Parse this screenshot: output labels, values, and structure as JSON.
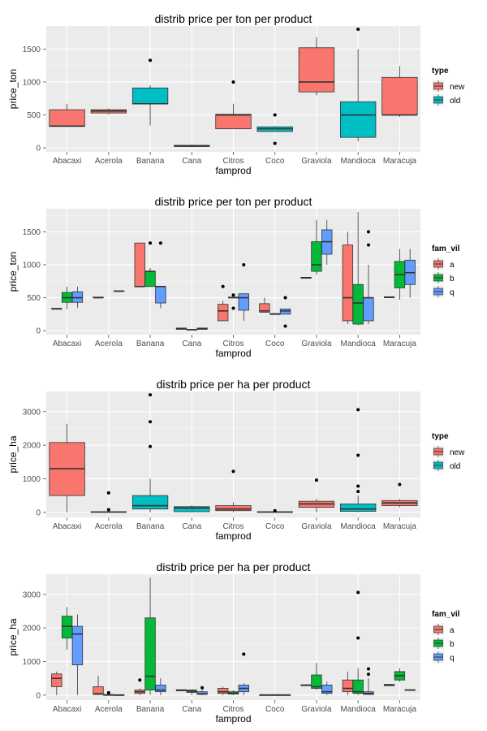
{
  "chart_data": [
    {
      "type": "box",
      "title": "distrib price per ton per product",
      "xlabel": "famprod",
      "ylabel": "price_ton",
      "ylim": [
        -60,
        1850
      ],
      "yticks": [
        0,
        500,
        1000,
        1500
      ],
      "categories": [
        "Abacaxi",
        "Acerola",
        "Banana",
        "Cana",
        "Citros",
        "Coco",
        "Graviola",
        "Mandioca",
        "Maracuja"
      ],
      "legend": {
        "title": "type",
        "entries": [
          {
            "label": "new",
            "color": "#f8766d"
          },
          {
            "label": "old",
            "color": "#00bfc4"
          }
        ]
      },
      "boxes": [
        {
          "category": "Abacaxi",
          "group": "new",
          "min": 330,
          "q1": 330,
          "median": 330,
          "q3": 580,
          "max": 670,
          "outliers": []
        },
        {
          "category": "Acerola",
          "group": "new",
          "min": 510,
          "q1": 530,
          "median": 560,
          "q3": 580,
          "max": 600,
          "outliers": []
        },
        {
          "category": "Banana",
          "group": "old",
          "min": 340,
          "q1": 670,
          "median": 670,
          "q3": 910,
          "max": 950,
          "outliers": [
            1330
          ]
        },
        {
          "category": "Cana",
          "group": "new",
          "min": 10,
          "q1": 20,
          "median": 30,
          "q3": 40,
          "max": 50,
          "outliers": []
        },
        {
          "category": "Citros",
          "group": "new",
          "min": 290,
          "q1": 290,
          "median": 500,
          "q3": 510,
          "max": 670,
          "outliers": [
            1000
          ]
        },
        {
          "category": "Coco",
          "group": "old",
          "min": 250,
          "q1": 250,
          "median": 290,
          "q3": 320,
          "max": 330,
          "outliers": [
            500,
            70
          ]
        },
        {
          "category": "Graviola",
          "group": "new",
          "min": 800,
          "q1": 850,
          "median": 1000,
          "q3": 1520,
          "max": 1680,
          "outliers": []
        },
        {
          "category": "Mandioca",
          "group": "old",
          "min": 100,
          "q1": 160,
          "median": 500,
          "q3": 700,
          "max": 1500,
          "outliers": [
            1800
          ]
        },
        {
          "category": "Maracuja",
          "group": "new",
          "min": 470,
          "q1": 500,
          "median": 500,
          "q3": 1070,
          "max": 1240,
          "outliers": []
        }
      ]
    },
    {
      "type": "box",
      "title": "distrib price per ton per product",
      "xlabel": "famprod",
      "ylabel": "price_ton",
      "ylim": [
        -60,
        1850
      ],
      "yticks": [
        0,
        500,
        1000,
        1500
      ],
      "categories": [
        "Abacaxi",
        "Acerola",
        "Banana",
        "Cana",
        "Citros",
        "Coco",
        "Graviola",
        "Mandioca",
        "Maracuja"
      ],
      "legend": {
        "title": "fam_vil",
        "entries": [
          {
            "label": "a",
            "color": "#f8766d"
          },
          {
            "label": "b",
            "color": "#00ba38"
          },
          {
            "label": "q",
            "color": "#619cff"
          }
        ]
      },
      "boxes": [
        {
          "category": "Abacaxi",
          "group": "a",
          "min": 330,
          "q1": 330,
          "median": 330,
          "q3": 340,
          "max": 340,
          "outliers": []
        },
        {
          "category": "Abacaxi",
          "group": "b",
          "min": 330,
          "q1": 430,
          "median": 500,
          "q3": 580,
          "max": 670,
          "outliers": []
        },
        {
          "category": "Abacaxi",
          "group": "q",
          "min": 350,
          "q1": 430,
          "median": 500,
          "q3": 590,
          "max": 670,
          "outliers": []
        },
        {
          "category": "Acerola",
          "group": "a",
          "min": 500,
          "q1": 500,
          "median": 500,
          "q3": 510,
          "max": 510,
          "outliers": []
        },
        {
          "category": "Acerola",
          "group": "q",
          "min": 600,
          "q1": 600,
          "median": 600,
          "q3": 605,
          "max": 605,
          "outliers": []
        },
        {
          "category": "Banana",
          "group": "a",
          "min": 670,
          "q1": 670,
          "median": 670,
          "q3": 1330,
          "max": 1330,
          "outliers": []
        },
        {
          "category": "Banana",
          "group": "b",
          "min": 670,
          "q1": 670,
          "median": 900,
          "q3": 900,
          "max": 950,
          "outliers": [
            1330
          ]
        },
        {
          "category": "Banana",
          "group": "q",
          "min": 340,
          "q1": 420,
          "median": 670,
          "q3": 670,
          "max": 670,
          "outliers": [
            1330
          ]
        },
        {
          "category": "Cana",
          "group": "a",
          "min": 20,
          "q1": 20,
          "median": 30,
          "q3": 40,
          "max": 40,
          "outliers": []
        },
        {
          "category": "Cana",
          "group": "b",
          "min": 10,
          "q1": 10,
          "median": 15,
          "q3": 20,
          "max": 20,
          "outliers": []
        },
        {
          "category": "Cana",
          "group": "q",
          "min": 20,
          "q1": 20,
          "median": 30,
          "q3": 40,
          "max": 40,
          "outliers": []
        },
        {
          "category": "Citros",
          "group": "a",
          "min": 150,
          "q1": 150,
          "median": 300,
          "q3": 400,
          "max": 450,
          "outliers": [
            670
          ]
        },
        {
          "category": "Citros",
          "group": "b",
          "min": 500,
          "q1": 500,
          "median": 500,
          "q3": 510,
          "max": 510,
          "outliers": [
            340,
            540
          ]
        },
        {
          "category": "Citros",
          "group": "q",
          "min": 150,
          "q1": 310,
          "median": 500,
          "q3": 560,
          "max": 560,
          "outliers": [
            1000
          ]
        },
        {
          "category": "Coco",
          "group": "a",
          "min": 280,
          "q1": 280,
          "median": 300,
          "q3": 410,
          "max": 500,
          "outliers": []
        },
        {
          "category": "Coco",
          "group": "b",
          "min": 250,
          "q1": 250,
          "median": 250,
          "q3": 260,
          "max": 260,
          "outliers": []
        },
        {
          "category": "Coco",
          "group": "q",
          "min": 250,
          "q1": 250,
          "median": 300,
          "q3": 330,
          "max": 330,
          "outliers": [
            500,
            70
          ]
        },
        {
          "category": "Graviola",
          "group": "a",
          "min": 800,
          "q1": 800,
          "median": 800,
          "q3": 810,
          "max": 810,
          "outliers": []
        },
        {
          "category": "Graviola",
          "group": "b",
          "min": 850,
          "q1": 900,
          "median": 1000,
          "q3": 1350,
          "max": 1680,
          "outliers": []
        },
        {
          "category": "Graviola",
          "group": "q",
          "min": 1000,
          "q1": 1160,
          "median": 1350,
          "q3": 1530,
          "max": 1680,
          "outliers": []
        },
        {
          "category": "Mandioca",
          "group": "a",
          "min": 100,
          "q1": 150,
          "median": 500,
          "q3": 1300,
          "max": 1500,
          "outliers": []
        },
        {
          "category": "Mandioca",
          "group": "b",
          "min": 80,
          "q1": 100,
          "median": 420,
          "q3": 700,
          "max": 1800,
          "outliers": []
        },
        {
          "category": "Mandioca",
          "group": "q",
          "min": 100,
          "q1": 150,
          "median": 500,
          "q3": 500,
          "max": 1000,
          "outliers": [
            1300,
            1500
          ]
        },
        {
          "category": "Maracuja",
          "group": "a",
          "min": 500,
          "q1": 500,
          "median": 510,
          "q3": 510,
          "max": 510,
          "outliers": []
        },
        {
          "category": "Maracuja",
          "group": "b",
          "min": 470,
          "q1": 650,
          "median": 850,
          "q3": 1050,
          "max": 1240,
          "outliers": []
        },
        {
          "category": "Maracuja",
          "group": "q",
          "min": 500,
          "q1": 700,
          "median": 880,
          "q3": 1070,
          "max": 1240,
          "outliers": []
        }
      ]
    },
    {
      "type": "box",
      "title": "distrib price per ha per product",
      "xlabel": "famprod",
      "ylabel": "price_ha",
      "ylim": [
        -150,
        3600
      ],
      "yticks": [
        0,
        1000,
        2000,
        3000
      ],
      "categories": [
        "Abacaxi",
        "Acerola",
        "Banana",
        "Cana",
        "Citros",
        "Coco",
        "Graviola",
        "Mandioca",
        "Maracuja"
      ],
      "legend": {
        "title": "type",
        "entries": [
          {
            "label": "new",
            "color": "#f8766d"
          },
          {
            "label": "old",
            "color": "#00bfc4"
          }
        ]
      },
      "boxes": [
        {
          "category": "Abacaxi",
          "group": "new",
          "min": 0,
          "q1": 500,
          "median": 1300,
          "q3": 2080,
          "max": 2640,
          "outliers": []
        },
        {
          "category": "Acerola",
          "group": "old",
          "min": 0,
          "q1": 0,
          "median": 10,
          "q3": 20,
          "max": 30,
          "outliers": [
            580,
            80
          ]
        },
        {
          "category": "Banana",
          "group": "old",
          "min": 0,
          "q1": 100,
          "median": 200,
          "q3": 500,
          "max": 1000,
          "outliers": [
            1960,
            2700,
            3500
          ]
        },
        {
          "category": "Cana",
          "group": "old",
          "min": 0,
          "q1": 20,
          "median": 130,
          "q3": 170,
          "max": 210,
          "outliers": []
        },
        {
          "category": "Citros",
          "group": "new",
          "min": 0,
          "q1": 50,
          "median": 100,
          "q3": 200,
          "max": 300,
          "outliers": [
            1220
          ]
        },
        {
          "category": "Coco",
          "group": "old",
          "min": 0,
          "q1": 0,
          "median": 10,
          "q3": 20,
          "max": 30,
          "outliers": [
            50
          ]
        },
        {
          "category": "Graviola",
          "group": "new",
          "min": 0,
          "q1": 150,
          "median": 250,
          "q3": 330,
          "max": 400,
          "outliers": [
            960
          ]
        },
        {
          "category": "Mandioca",
          "group": "old",
          "min": 0,
          "q1": 30,
          "median": 100,
          "q3": 250,
          "max": 500,
          "outliers": [
            620,
            780,
            1700,
            3060
          ]
        },
        {
          "category": "Maracuja",
          "group": "new",
          "min": 150,
          "q1": 200,
          "median": 280,
          "q3": 350,
          "max": 400,
          "outliers": [
            830
          ]
        }
      ]
    },
    {
      "type": "box",
      "title": "distrib price per ha per product",
      "xlabel": "famprod",
      "ylabel": "price_ha",
      "ylim": [
        -150,
        3600
      ],
      "yticks": [
        0,
        1000,
        2000,
        3000
      ],
      "categories": [
        "Abacaxi",
        "Acerola",
        "Banana",
        "Cana",
        "Citros",
        "Coco",
        "Graviola",
        "Mandioca",
        "Maracuja"
      ],
      "legend": {
        "title": "fam_vil",
        "entries": [
          {
            "label": "a",
            "color": "#f8766d"
          },
          {
            "label": "b",
            "color": "#00ba38"
          },
          {
            "label": "q",
            "color": "#619cff"
          }
        ]
      },
      "boxes": [
        {
          "category": "Abacaxi",
          "group": "a",
          "min": 0,
          "q1": 250,
          "median": 500,
          "q3": 630,
          "max": 700,
          "outliers": []
        },
        {
          "category": "Abacaxi",
          "group": "b",
          "min": 1350,
          "q1": 1700,
          "median": 2050,
          "q3": 2350,
          "max": 2620,
          "outliers": []
        },
        {
          "category": "Abacaxi",
          "group": "q",
          "min": 0,
          "q1": 900,
          "median": 1820,
          "q3": 2050,
          "max": 2400,
          "outliers": []
        },
        {
          "category": "Acerola",
          "group": "a",
          "min": 0,
          "q1": 20,
          "median": 40,
          "q3": 250,
          "max": 580,
          "outliers": []
        },
        {
          "category": "Acerola",
          "group": "b",
          "min": 0,
          "q1": 0,
          "median": 10,
          "q3": 10,
          "max": 10,
          "outliers": [
            70
          ]
        },
        {
          "category": "Acerola",
          "group": "q",
          "min": 0,
          "q1": 0,
          "median": 5,
          "q3": 5,
          "max": 10,
          "outliers": []
        },
        {
          "category": "Banana",
          "group": "a",
          "min": 0,
          "q1": 50,
          "median": 100,
          "q3": 150,
          "max": 200,
          "outliers": [
            450
          ]
        },
        {
          "category": "Banana",
          "group": "b",
          "min": 0,
          "q1": 150,
          "median": 560,
          "q3": 2300,
          "max": 3500,
          "outliers": []
        },
        {
          "category": "Banana",
          "group": "q",
          "min": 0,
          "q1": 100,
          "median": 150,
          "q3": 300,
          "max": 500,
          "outliers": []
        },
        {
          "category": "Cana",
          "group": "a",
          "min": 120,
          "q1": 130,
          "median": 140,
          "q3": 160,
          "max": 170,
          "outliers": []
        },
        {
          "category": "Cana",
          "group": "b",
          "min": 0,
          "q1": 80,
          "median": 120,
          "q3": 150,
          "max": 180,
          "outliers": []
        },
        {
          "category": "Cana",
          "group": "q",
          "min": 0,
          "q1": 20,
          "median": 40,
          "q3": 100,
          "max": 150,
          "outliers": [
            220
          ]
        },
        {
          "category": "Citros",
          "group": "a",
          "min": 0,
          "q1": 50,
          "median": 100,
          "q3": 200,
          "max": 250,
          "outliers": []
        },
        {
          "category": "Citros",
          "group": "b",
          "min": 0,
          "q1": 30,
          "median": 60,
          "q3": 100,
          "max": 150,
          "outliers": []
        },
        {
          "category": "Citros",
          "group": "q",
          "min": 0,
          "q1": 100,
          "median": 200,
          "q3": 300,
          "max": 350,
          "outliers": [
            1220
          ]
        },
        {
          "category": "Coco",
          "group": "a",
          "min": 0,
          "q1": 0,
          "median": 5,
          "q3": 5,
          "max": 10,
          "outliers": []
        },
        {
          "category": "Coco",
          "group": "b",
          "min": 0,
          "q1": 0,
          "median": 5,
          "q3": 5,
          "max": 10,
          "outliers": []
        },
        {
          "category": "Coco",
          "group": "q",
          "min": 0,
          "q1": 0,
          "median": 5,
          "q3": 5,
          "max": 10,
          "outliers": []
        },
        {
          "category": "Graviola",
          "group": "a",
          "min": 280,
          "q1": 280,
          "median": 300,
          "q3": 300,
          "max": 310,
          "outliers": []
        },
        {
          "category": "Graviola",
          "group": "b",
          "min": 150,
          "q1": 200,
          "median": 250,
          "q3": 600,
          "max": 960,
          "outliers": []
        },
        {
          "category": "Graviola",
          "group": "q",
          "min": 0,
          "q1": 50,
          "median": 100,
          "q3": 300,
          "max": 400,
          "outliers": []
        },
        {
          "category": "Mandioca",
          "group": "a",
          "min": 0,
          "q1": 100,
          "median": 200,
          "q3": 450,
          "max": 700,
          "outliers": []
        },
        {
          "category": "Mandioca",
          "group": "b",
          "min": 0,
          "q1": 50,
          "median": 100,
          "q3": 450,
          "max": 800,
          "outliers": [
            1700,
            3060
          ]
        },
        {
          "category": "Mandioca",
          "group": "q",
          "min": 0,
          "q1": 20,
          "median": 50,
          "q3": 100,
          "max": 500,
          "outliers": [
            620,
            780
          ]
        },
        {
          "category": "Maracuja",
          "group": "a",
          "min": 280,
          "q1": 280,
          "median": 300,
          "q3": 320,
          "max": 330,
          "outliers": []
        },
        {
          "category": "Maracuja",
          "group": "b",
          "min": 400,
          "q1": 450,
          "median": 580,
          "q3": 700,
          "max": 800,
          "outliers": []
        },
        {
          "category": "Maracuja",
          "group": "q",
          "min": 130,
          "q1": 140,
          "median": 150,
          "q3": 160,
          "max": 170,
          "outliers": []
        }
      ]
    }
  ]
}
